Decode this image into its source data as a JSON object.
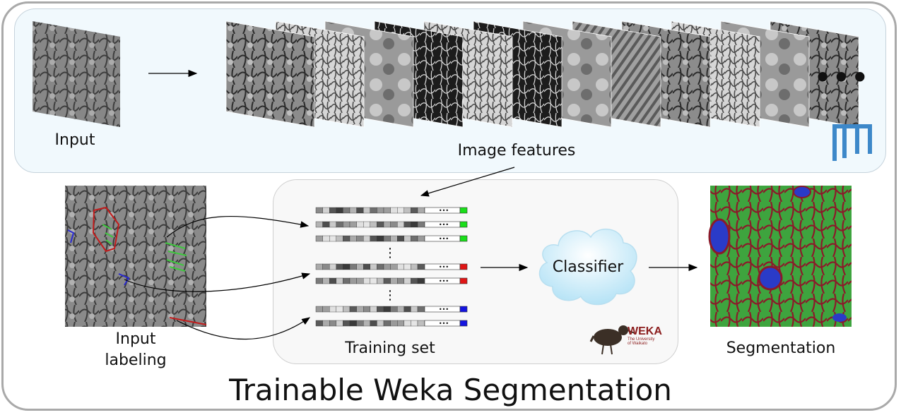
{
  "title": "Trainable Weka Segmentation",
  "labels": {
    "input": "Input",
    "image_features": "Image features",
    "input_labeling_line1": "Input",
    "input_labeling_line2": "labeling",
    "training_set": "Training set",
    "classifier": "Classifier",
    "segmentation": "Segmentation",
    "more_features": "•••"
  },
  "weka_logo": {
    "name": "WEKA",
    "sub1": "The University",
    "sub2": "of Waikato"
  },
  "colors": {
    "class_green": "#1adf1a",
    "class_red": "#e01515",
    "class_blue": "#1414e0",
    "fiji_blue": "#3d88c9",
    "weka_red": "#8b1d1d"
  },
  "training_rows": [
    {
      "class": "green"
    },
    {
      "class": "green"
    },
    {
      "class": "green"
    },
    {
      "class": "red"
    },
    {
      "class": "red"
    },
    {
      "class": "blue"
    },
    {
      "class": "blue"
    }
  ],
  "feature_panel_count": 12
}
